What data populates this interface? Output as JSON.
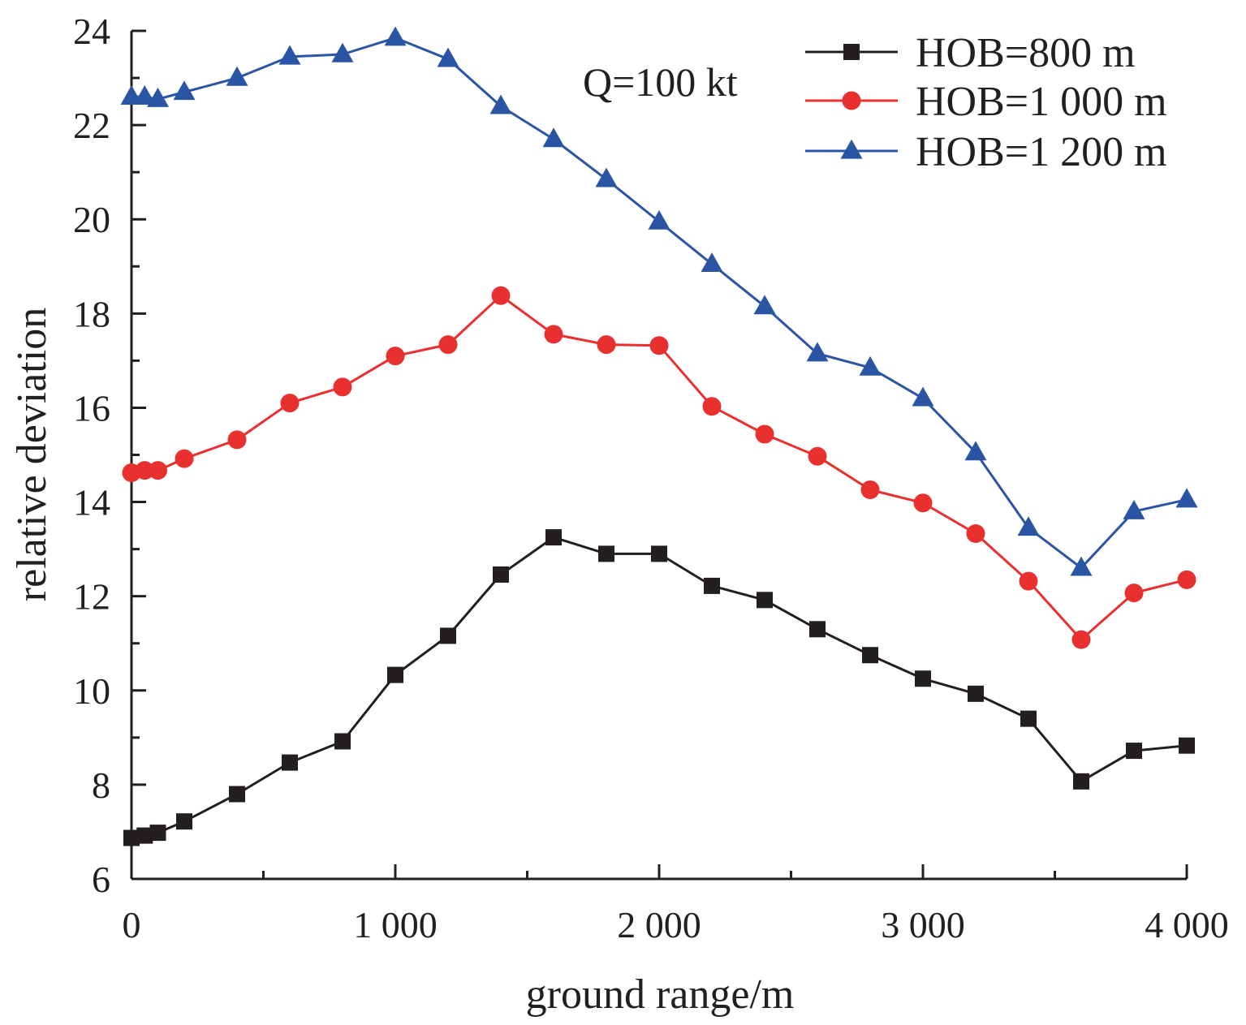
{
  "chart_data": {
    "type": "line",
    "title": "",
    "xlabel": "ground range/m",
    "ylabel": "relative deviation",
    "annotation": "Q=100 kt",
    "xlim": [
      0,
      4000
    ],
    "ylim": [
      6,
      24
    ],
    "x_ticks": [
      0,
      1000,
      2000,
      3000,
      4000
    ],
    "x_tick_labels": [
      "0",
      "1 000",
      "2 000",
      "3 000",
      "4 000"
    ],
    "y_ticks": [
      6,
      8,
      10,
      12,
      14,
      16,
      18,
      20,
      22,
      24
    ],
    "y_tick_labels": [
      "6",
      "8",
      "10",
      "12",
      "14",
      "16",
      "18",
      "20",
      "22",
      "24"
    ],
    "grid": false,
    "legend_position": "top-right",
    "x": [
      0,
      50,
      100,
      200,
      400,
      600,
      800,
      1000,
      1200,
      1400,
      1600,
      1800,
      2000,
      2200,
      2400,
      2600,
      2800,
      3000,
      3200,
      3400,
      3600,
      3800,
      4000
    ],
    "series": [
      {
        "name": "HOB=800 m",
        "color": "#231f20",
        "marker": "square",
        "values": [
          6.87,
          6.92,
          6.98,
          7.22,
          7.8,
          8.47,
          8.92,
          10.33,
          11.16,
          12.46,
          13.25,
          12.9,
          12.9,
          12.22,
          11.92,
          11.3,
          10.75,
          10.25,
          9.93,
          9.4,
          8.07,
          8.72,
          8.83
        ]
      },
      {
        "name": "HOB=1 000 m",
        "color": "#e8302f",
        "marker": "circle",
        "values": [
          14.62,
          14.67,
          14.67,
          14.92,
          15.32,
          16.1,
          16.44,
          17.1,
          17.34,
          18.38,
          17.56,
          17.34,
          17.32,
          16.03,
          15.44,
          14.97,
          14.26,
          13.98,
          13.33,
          12.32,
          11.08,
          12.07,
          12.35
        ]
      },
      {
        "name": "HOB=1 200 m",
        "color": "#2a55a4",
        "marker": "triangle",
        "values": [
          22.6,
          22.6,
          22.55,
          22.7,
          23.0,
          23.45,
          23.5,
          23.85,
          23.4,
          22.4,
          21.7,
          20.85,
          19.95,
          19.05,
          18.15,
          17.15,
          16.85,
          16.2,
          15.05,
          13.45,
          12.6,
          13.8,
          14.05
        ]
      }
    ]
  }
}
